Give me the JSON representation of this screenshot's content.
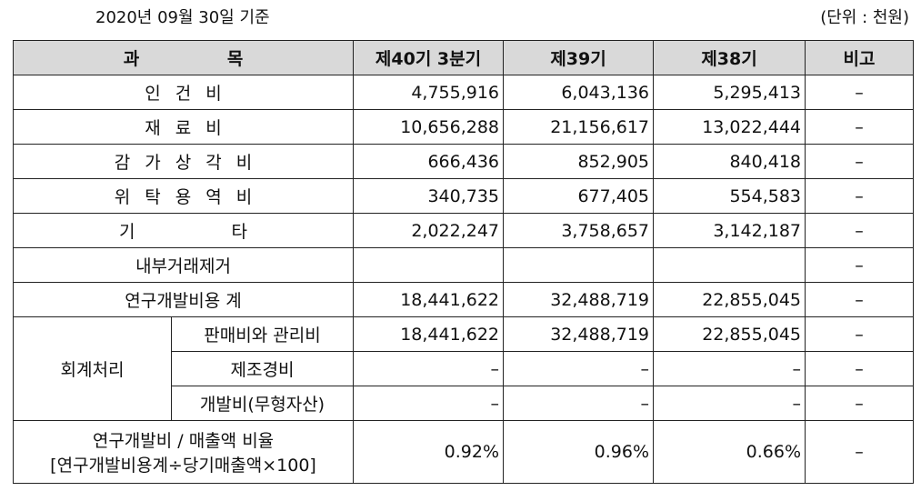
{
  "header": {
    "date": "2020년 09월 30일 기준",
    "unit": "(단위 : 천원)"
  },
  "table": {
    "columns": [
      "과 목",
      "제40기 3분기",
      "제39기",
      "제38기",
      "비고"
    ],
    "rows": [
      [
        "인 건 비",
        "4,755,916",
        "6,043,136",
        "5,295,413",
        "–"
      ],
      [
        "재 료 비",
        "10,656,288",
        "21,156,617",
        "13,022,444",
        "–"
      ],
      [
        "감 가 상 각 비",
        "666,436",
        "852,905",
        "840,418",
        "–"
      ],
      [
        "위 탁 용 역 비",
        "340,735",
        "677,405",
        "554,583",
        "–"
      ],
      [
        "기 타",
        "2,022,247",
        "3,758,657",
        "3,142,187",
        "–"
      ]
    ],
    "elimination": {
      "label": "내부거래제거",
      "note": "–"
    },
    "total": [
      "연구개발비용 계",
      "18,441,622",
      "32,488,719",
      "22,855,045",
      "–"
    ],
    "accounting": {
      "label": "회계처리",
      "rows": [
        [
          "판매비와 관리비",
          "18,441,622",
          "32,488,719",
          "22,855,045",
          "–"
        ],
        [
          "제조경비",
          "–",
          "–",
          "–",
          "–"
        ],
        [
          "개발비(무형자산)",
          "–",
          "–",
          "–",
          "–"
        ]
      ]
    },
    "ratio": {
      "label": [
        "연구개발비 / 매출액 비율",
        "[연구개발비용계÷당기매출액×100]"
      ],
      "values": [
        "0.92%",
        "0.96%",
        "0.66%"
      ],
      "note": "–"
    }
  }
}
